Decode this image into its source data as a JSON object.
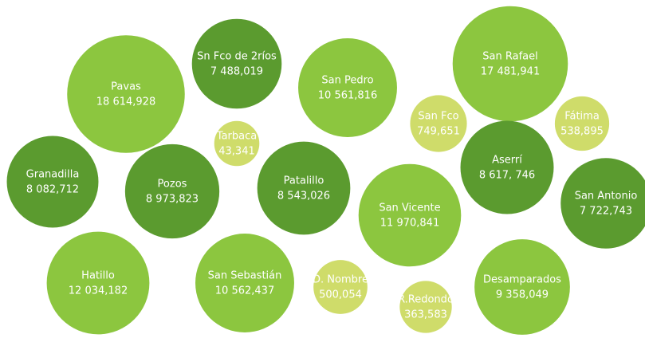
{
  "chart_data": {
    "type": "bubble",
    "categories": [
      "Pavas",
      "Sn Fco de 2ríos",
      "San Pedro",
      "San Rafael",
      "San Fco",
      "Fátima",
      "Tarbaca",
      "Granadilla",
      "Pozos",
      "Patalillo",
      "San Vicente",
      "Aserrí",
      "San Antonio",
      "Hatillo",
      "San Sebastián",
      "D. Nombre",
      "R.Redondo",
      "Desamparados"
    ],
    "values": [
      18614928,
      7488019,
      10561816,
      17481941,
      749651,
      538895,
      43341,
      8082712,
      8973823,
      8543026,
      11970841,
      8617746,
      7722743,
      12034182,
      10562437,
      500054,
      363583,
      9358049
    ],
    "value_labels": [
      "18 614,928",
      "7 488,019",
      "10 561,816",
      "17 481,941",
      "749,651",
      "538,895",
      "43,341",
      "8 082,712",
      "8 973,823",
      "8 543,026",
      "11 970,841",
      "8 617, 746",
      "7 722,743",
      "12 034,182",
      "10 562,437",
      "500,054",
      "363,583",
      "9 358,049"
    ],
    "colors": [
      "#8cc63f",
      "#5b9b2f",
      "#8cc63f",
      "#8cc63f",
      "#cfdc6a",
      "#cfdc6a",
      "#cfdc6a",
      "#5b9b2f",
      "#5b9b2f",
      "#5b9b2f",
      "#8cc63f",
      "#5b9b2f",
      "#5b9b2f",
      "#8cc63f",
      "#8cc63f",
      "#cfdc6a",
      "#cfdc6a",
      "#8cc63f"
    ]
  }
}
